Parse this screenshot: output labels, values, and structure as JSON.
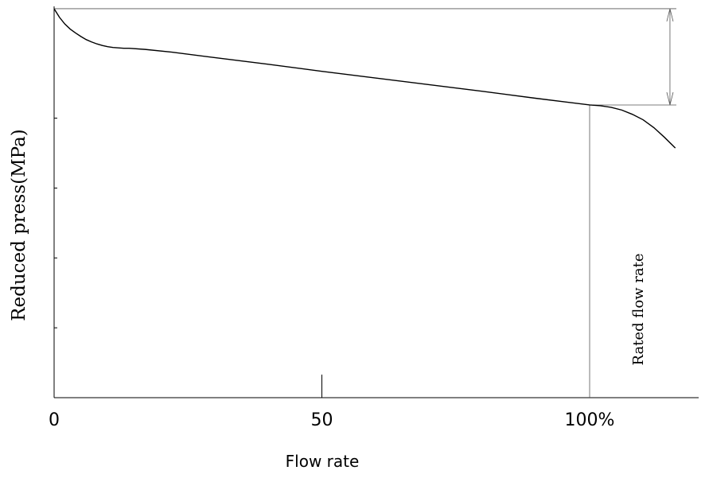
{
  "chart_data": {
    "type": "line",
    "xlabel": "Flow rate",
    "ylabel": "Reduced press(MPa)",
    "xticks": [
      {
        "value": 0,
        "label": "0"
      },
      {
        "value": 50,
        "label": "50"
      },
      {
        "value": 100,
        "label": "100%"
      }
    ],
    "xlim": [
      0,
      121
    ],
    "ylim": [
      0,
      1
    ],
    "grid": false,
    "series": [
      {
        "x": [
          0,
          1,
          2,
          3,
          4,
          5,
          6,
          7,
          8,
          9,
          10,
          11,
          12,
          13,
          14,
          17,
          22,
          30,
          40,
          50,
          60,
          70,
          80,
          90,
          100,
          102,
          104,
          106,
          108,
          110,
          112,
          114,
          116
        ],
        "y": [
          0.994,
          0.972,
          0.955,
          0.942,
          0.932,
          0.923,
          0.915,
          0.909,
          0.904,
          0.9,
          0.897,
          0.895,
          0.894,
          0.893,
          0.893,
          0.89,
          0.883,
          0.869,
          0.852,
          0.834,
          0.817,
          0.8,
          0.783,
          0.765,
          0.748,
          0.746,
          0.742,
          0.735,
          0.724,
          0.71,
          0.69,
          0.665,
          0.638
        ]
      }
    ],
    "annotations": {
      "rated_flow_label": "Rated flow rate",
      "rated_flow_x": 100,
      "max_pressure_y": 0.994,
      "rated_pressure_y": 0.748,
      "dimension_arrow_x": 115
    }
  }
}
